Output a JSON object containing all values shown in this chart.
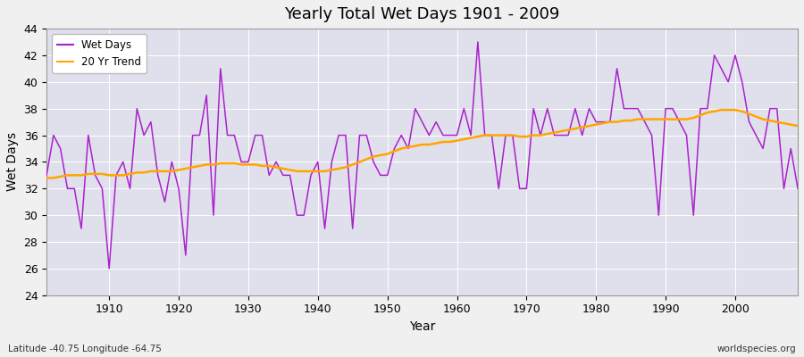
{
  "title": "Yearly Total Wet Days 1901 - 2009",
  "xlabel": "Year",
  "ylabel": "Wet Days",
  "lat_lon_label": "Latitude -40.75 Longitude -64.75",
  "source_label": "worldspecies.org",
  "line_color": "#AA22CC",
  "trend_color": "#FFA500",
  "fig_facecolor": "#F0F0F0",
  "plot_facecolor": "#E0E0EC",
  "ylim": [
    24,
    44
  ],
  "xlim": [
    1901,
    2009
  ],
  "years": [
    1901,
    1902,
    1903,
    1904,
    1905,
    1906,
    1907,
    1908,
    1909,
    1910,
    1911,
    1912,
    1913,
    1914,
    1915,
    1916,
    1917,
    1918,
    1919,
    1920,
    1921,
    1922,
    1923,
    1924,
    1925,
    1926,
    1927,
    1928,
    1929,
    1930,
    1931,
    1932,
    1933,
    1934,
    1935,
    1936,
    1937,
    1938,
    1939,
    1940,
    1941,
    1942,
    1943,
    1944,
    1945,
    1946,
    1947,
    1948,
    1949,
    1950,
    1951,
    1952,
    1953,
    1954,
    1955,
    1956,
    1957,
    1958,
    1959,
    1960,
    1961,
    1962,
    1963,
    1964,
    1965,
    1966,
    1967,
    1968,
    1969,
    1970,
    1971,
    1972,
    1973,
    1974,
    1975,
    1976,
    1977,
    1978,
    1979,
    1980,
    1981,
    1982,
    1983,
    1984,
    1985,
    1986,
    1987,
    1988,
    1989,
    1990,
    1991,
    1992,
    1993,
    1994,
    1995,
    1996,
    1997,
    1998,
    1999,
    2000,
    2001,
    2002,
    2003,
    2004,
    2005,
    2006,
    2007,
    2008,
    2009
  ],
  "wet_days": [
    33,
    36,
    35,
    32,
    32,
    29,
    36,
    33,
    32,
    26,
    33,
    34,
    32,
    38,
    36,
    37,
    33,
    31,
    34,
    32,
    27,
    36,
    36,
    39,
    30,
    41,
    36,
    36,
    34,
    34,
    36,
    36,
    33,
    34,
    33,
    33,
    30,
    30,
    33,
    34,
    29,
    34,
    36,
    36,
    29,
    36,
    36,
    34,
    33,
    33,
    35,
    36,
    35,
    38,
    37,
    36,
    37,
    36,
    36,
    36,
    38,
    36,
    43,
    36,
    36,
    32,
    36,
    36,
    32,
    32,
    38,
    36,
    38,
    36,
    36,
    36,
    38,
    36,
    38,
    37,
    37,
    37,
    41,
    38,
    38,
    38,
    37,
    36,
    30,
    38,
    38,
    37,
    36,
    30,
    38,
    38,
    42,
    41,
    40,
    42,
    40,
    37,
    36,
    35,
    38,
    38,
    32,
    35,
    32
  ],
  "trend_values": [
    32.8,
    32.8,
    32.9,
    33.0,
    33.0,
    33.0,
    33.1,
    33.1,
    33.1,
    33.0,
    33.0,
    33.0,
    33.1,
    33.2,
    33.2,
    33.3,
    33.3,
    33.3,
    33.3,
    33.4,
    33.5,
    33.6,
    33.7,
    33.8,
    33.8,
    33.9,
    33.9,
    33.9,
    33.8,
    33.8,
    33.8,
    33.7,
    33.7,
    33.6,
    33.5,
    33.4,
    33.3,
    33.3,
    33.3,
    33.3,
    33.3,
    33.4,
    33.5,
    33.6,
    33.8,
    34.0,
    34.2,
    34.4,
    34.5,
    34.6,
    34.8,
    35.0,
    35.1,
    35.2,
    35.3,
    35.3,
    35.4,
    35.5,
    35.5,
    35.6,
    35.7,
    35.8,
    35.9,
    36.0,
    36.0,
    36.0,
    36.0,
    36.0,
    35.9,
    35.9,
    36.0,
    36.0,
    36.1,
    36.2,
    36.3,
    36.4,
    36.5,
    36.6,
    36.7,
    36.8,
    36.9,
    37.0,
    37.0,
    37.1,
    37.1,
    37.2,
    37.2,
    37.2,
    37.2,
    37.2,
    37.2,
    37.2,
    37.2,
    37.3,
    37.5,
    37.7,
    37.8,
    37.9,
    37.9,
    37.9,
    37.8,
    37.6,
    37.4,
    37.2,
    37.1,
    37.0,
    36.9,
    36.8,
    36.7
  ]
}
